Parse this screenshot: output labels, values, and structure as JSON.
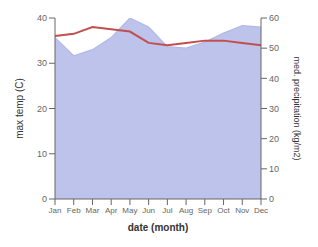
{
  "chart_data": {
    "type": "line",
    "categories": [
      "Jan",
      "Feb",
      "Mar",
      "Apr",
      "May",
      "Jun",
      "Jul",
      "Aug",
      "Sep",
      "Oct",
      "Nov",
      "Dec"
    ],
    "series": [
      {
        "type": "area",
        "axis": "y2",
        "color": "#b3b8e8",
        "values": [
          53.5,
          47.5,
          49.5,
          53.5,
          60.0,
          57.0,
          50.5,
          50.0,
          52.0,
          55.0,
          57.5,
          57.0
        ]
      },
      {
        "type": "line",
        "color": "#c0504d",
        "values": [
          36.0,
          36.5,
          38.0,
          37.5,
          37.0,
          34.5,
          34.0,
          34.5,
          35.0,
          35.0,
          34.5,
          34.0
        ]
      }
    ],
    "xlabel": "date (month)",
    "ylabel": "max temp (C)",
    "y2label": "med. precipitation (kg/m2)",
    "ylim": [
      0,
      40
    ],
    "yticks": [
      0,
      10,
      20,
      30,
      40
    ],
    "y2lim": [
      0,
      60
    ],
    "y2ticks": [
      0,
      10,
      20,
      30,
      40,
      50,
      60
    ],
    "grid": false
  }
}
